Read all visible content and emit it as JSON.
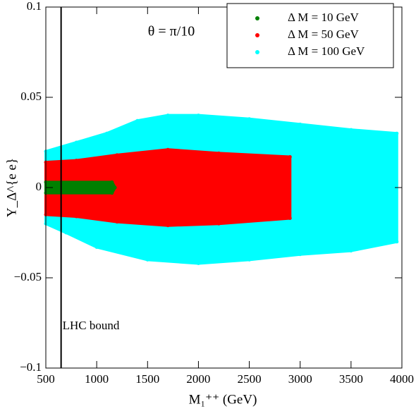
{
  "chart_data": {
    "type": "scatter",
    "x_label": "M₁⁺⁺ (GeV)",
    "y_label": "Y_Δ^{e e}",
    "annotation": "θ = π/10",
    "reference_line": {
      "value": 650,
      "label": "LHC bound"
    },
    "xlim": [
      500,
      4000
    ],
    "ylim": [
      -0.1,
      0.1
    ],
    "xticks": [
      500,
      1000,
      1500,
      2000,
      2500,
      3000,
      3500,
      4000
    ],
    "yticks": [
      {
        "value": 0.1,
        "label": "0.1"
      },
      {
        "value": 0.05,
        "label": "0.05"
      },
      0,
      {
        "value": -0.05,
        "label": "−0.05"
      },
      {
        "value": -0.1,
        "label": "−0.1"
      }
    ],
    "legend": "top-right",
    "series": [
      {
        "name": "Δ M = 100 GeV",
        "color": "#00ffff",
        "x": [
          500,
          800,
          1100,
          1400,
          1700,
          2000,
          2500,
          3000,
          3500,
          3950,
          3950,
          3500,
          3000,
          2500,
          2000,
          1500,
          1000,
          700,
          500
        ],
        "values": [
          0.02,
          0.025,
          0.03,
          0.037,
          0.04,
          0.04,
          0.038,
          0.035,
          0.032,
          0.03,
          -0.03,
          -0.035,
          -0.037,
          -0.04,
          -0.042,
          -0.04,
          -0.033,
          -0.025,
          -0.02
        ]
      },
      {
        "name": "Δ M = 50 GeV",
        "color": "#ff0000",
        "x": [
          500,
          800,
          1200,
          1700,
          2200,
          2900,
          2900,
          2200,
          1700,
          1200,
          800,
          500
        ],
        "values": [
          0.014,
          0.015,
          0.018,
          0.021,
          0.019,
          0.017,
          -0.017,
          -0.02,
          -0.021,
          -0.019,
          -0.016,
          -0.015
        ]
      },
      {
        "name": "Δ M = 10 GeV",
        "color": "#008000",
        "x": [
          500,
          1150,
          1180,
          1150,
          500
        ],
        "values": [
          0.003,
          0.003,
          0,
          -0.003,
          -0.003
        ]
      }
    ]
  }
}
